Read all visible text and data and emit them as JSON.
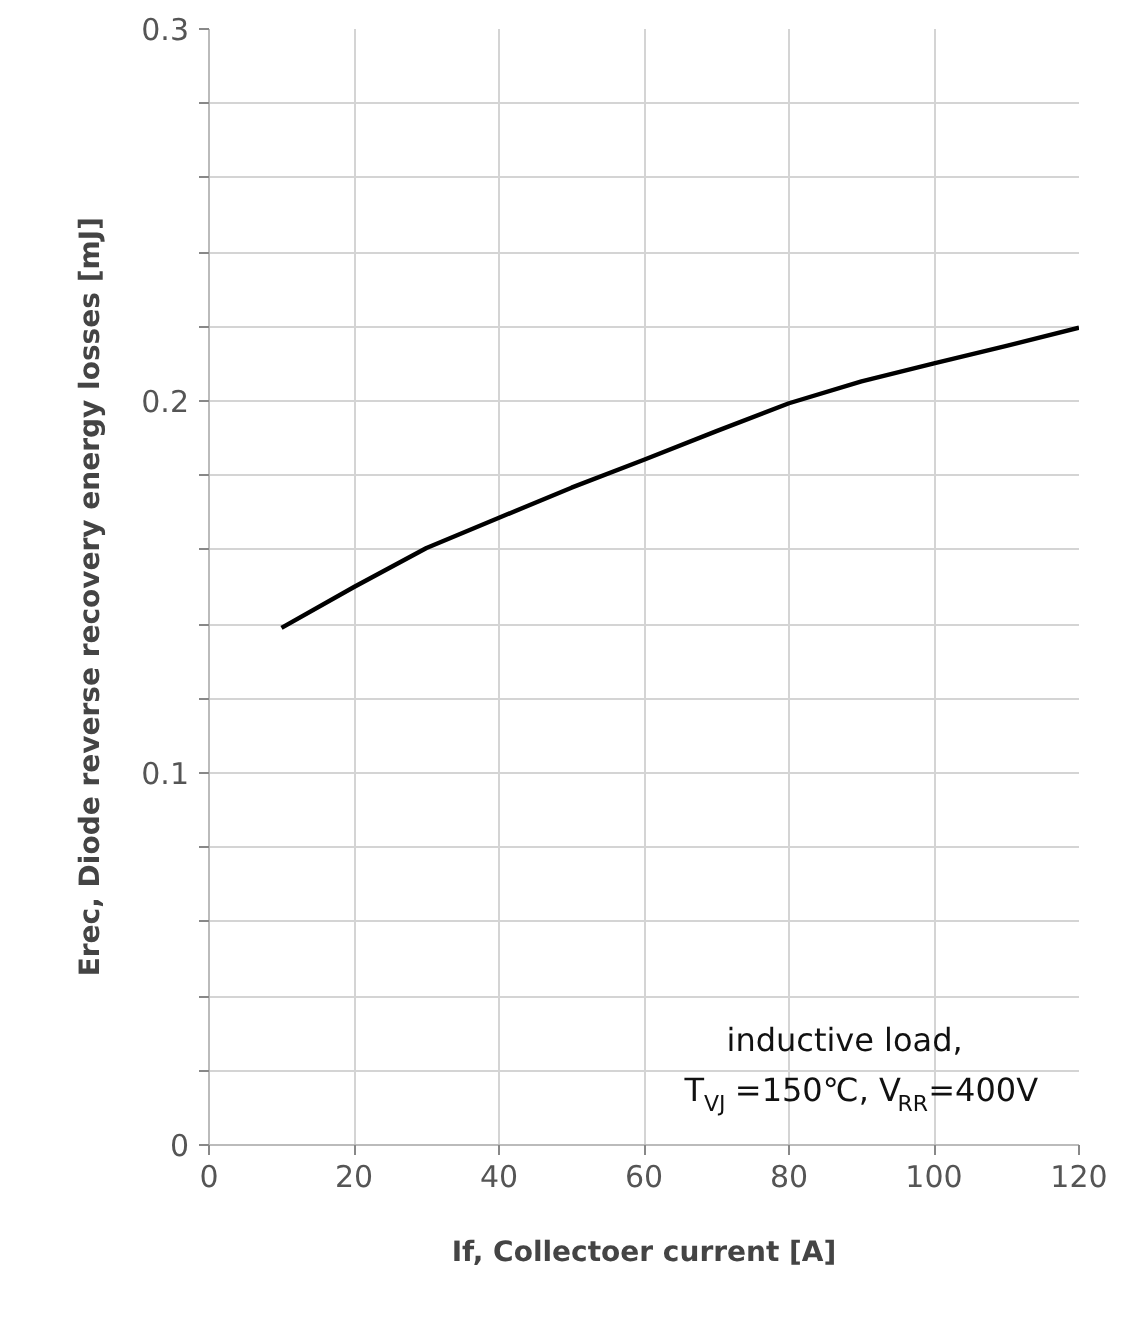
{
  "chart_data": {
    "type": "line",
    "xlabel": "If, Collectoer current [A]",
    "ylabel": "Erec, Diode reverse recovery energy losses   [mJ]",
    "x": [
      10,
      20,
      30,
      40,
      50,
      60,
      70,
      80,
      90,
      100,
      110,
      120
    ],
    "series": [
      {
        "color": "#000000",
        "values": [
          0.139,
          0.15,
          0.1605,
          0.1686,
          0.1767,
          0.1842,
          0.1919,
          0.1994,
          0.2053,
          0.2101,
          0.2148,
          0.2197
        ]
      }
    ],
    "xlim": [
      0,
      120
    ],
    "ylim": [
      0,
      0.3
    ],
    "xticks": [
      0,
      20,
      40,
      60,
      80,
      100,
      120
    ],
    "yticks": [
      0,
      {
        "value": 0.02,
        "label": null
      },
      {
        "value": 0.04,
        "label": null
      },
      {
        "value": 0.06,
        "label": null
      },
      {
        "value": 0.08,
        "label": null
      },
      0.1,
      {
        "value": 0.12,
        "label": null
      },
      {
        "value": 0.14,
        "label": null
      },
      {
        "value": 0.16,
        "label": null
      },
      {
        "value": 0.18,
        "label": null
      },
      0.2,
      {
        "value": 0.22,
        "label": null
      },
      {
        "value": 0.24,
        "label": null
      },
      {
        "value": 0.26,
        "label": null
      },
      {
        "value": 0.28,
        "label": null
      },
      0.3
    ],
    "grid": true,
    "marker": "none",
    "line_style": "solid",
    "annotations": [
      "inductive load,",
      "T$_{VJ}$=150℃, V$_{RR}$=400V"
    ]
  }
}
